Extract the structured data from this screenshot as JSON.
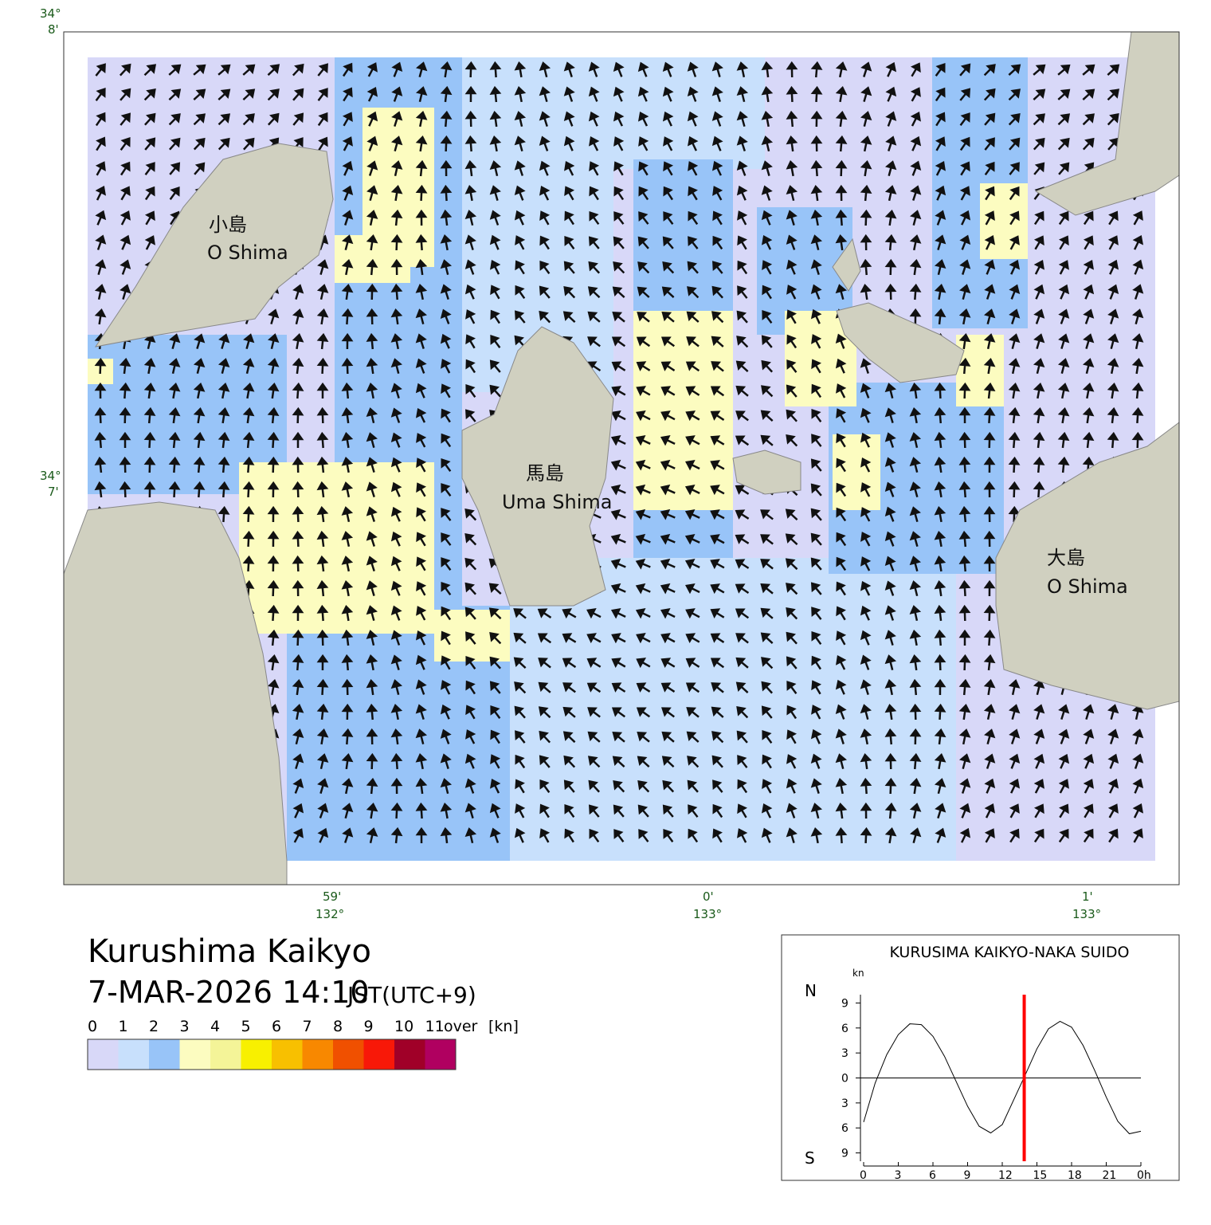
{
  "map": {
    "title": "Kurushima Kaikyo",
    "datetime": "7-MAR-2026 14:10",
    "timezone": "JST(UTC+9)",
    "lat_labels": [
      {
        "deg": "34°",
        "min": "8'"
      },
      {
        "deg": "34°",
        "min": "7'"
      }
    ],
    "lon_labels": [
      {
        "deg": "132°",
        "min": "59'"
      },
      {
        "deg": "133°",
        "min": "0'"
      },
      {
        "deg": "133°",
        "min": "1'"
      }
    ],
    "places": [
      {
        "ja": "小島",
        "en": "O Shima"
      },
      {
        "ja": "馬島",
        "en": "Uma Shima"
      },
      {
        "ja": "大島",
        "en": "O Shima"
      }
    ]
  },
  "legend": {
    "ticks": [
      "0",
      "1",
      "2",
      "3",
      "4",
      "5",
      "6",
      "7",
      "8",
      "9",
      "10",
      "11"
    ],
    "over": "over",
    "unit": "[kn]",
    "colors": [
      "#d8d8f8",
      "#c8e0fc",
      "#98c4f8",
      "#fcfcc0",
      "#f4f498",
      "#f8f000",
      "#f8c000",
      "#f88800",
      "#f05000",
      "#f81808",
      "#a00028",
      "#b00060"
    ]
  },
  "chart_data": {
    "type": "line",
    "title": "KURUSIMA KAIKYO-NAKA SUIDO",
    "unit_label": "kn",
    "north_label": "N",
    "south_label": "S",
    "x": [
      0,
      1,
      2,
      3,
      4,
      5,
      6,
      7,
      8,
      9,
      10,
      11,
      12,
      13,
      14,
      15,
      16,
      17,
      18,
      19,
      20,
      21,
      22,
      23,
      24
    ],
    "values": [
      -5.3,
      -0.6,
      2.8,
      5.2,
      6.5,
      6.4,
      5.0,
      2.6,
      -0.4,
      -3.4,
      -5.8,
      -6.6,
      -5.6,
      -2.6,
      0.4,
      3.5,
      5.9,
      6.8,
      6.1,
      3.9,
      0.9,
      -2.3,
      -5.2,
      -6.7,
      -6.4
    ],
    "color": "#000000",
    "xlim": [
      0,
      24
    ],
    "xticks": [
      0,
      3,
      6,
      9,
      12,
      15,
      18,
      21,
      {
        "value": 24,
        "label": "0h"
      }
    ],
    "ylim": [
      -10,
      10
    ],
    "yticks": [
      9,
      6,
      3,
      0,
      {
        "value": -3,
        "label": "3"
      },
      {
        "value": -6,
        "label": "6"
      },
      {
        "value": -9,
        "label": "9"
      }
    ],
    "now": 13.9,
    "now_color": "#ff0000"
  }
}
